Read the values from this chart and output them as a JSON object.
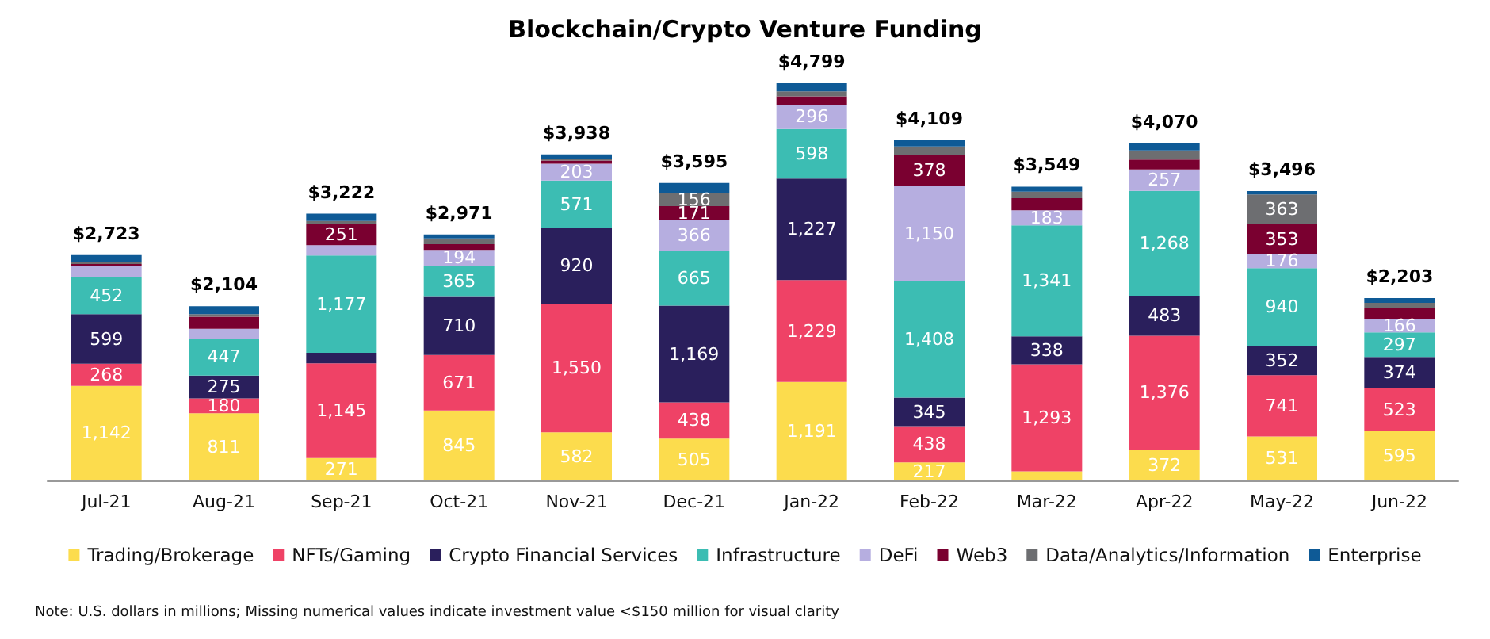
{
  "chart_data": {
    "type": "bar",
    "title": "Blockchain/Crypto Venture Funding",
    "stacked": true,
    "tick_labels": "x",
    "legend": "bottom",
    "categories": [
      "Jul-21",
      "Aug-21",
      "Sep-21",
      "Oct-21",
      "Nov-21",
      "Dec-21",
      "Jan-22",
      "Feb-22",
      "Mar-22",
      "Apr-22",
      "May-22",
      "Jun-22"
    ],
    "series": [
      {
        "name": "Trading/Brokerage",
        "color": "#fcdc4d",
        "values": [
          1142,
          811,
          271,
          845,
          582,
          505,
          1191,
          217,
          110,
          372,
          531,
          595
        ],
        "value_labels": [
          "1,142",
          "811",
          "271",
          "845",
          "582",
          "505",
          "1,191",
          "217",
          null,
          "372",
          "531",
          "595"
        ]
      },
      {
        "name": "NFTs/Gaming",
        "color": "#ef4266",
        "values": [
          268,
          180,
          1145,
          671,
          1550,
          438,
          1229,
          438,
          1293,
          1376,
          741,
          523
        ],
        "value_labels": [
          "268",
          "180",
          "1,145",
          "671",
          "1,550",
          "438",
          "1,229",
          "438",
          "1,293",
          "1,376",
          "741",
          "523"
        ]
      },
      {
        "name": "Crypto Financial Services",
        "color": "#2a1f5c",
        "values": [
          599,
          275,
          125,
          710,
          920,
          1169,
          1227,
          345,
          338,
          483,
          352,
          374
        ],
        "value_labels": [
          "599",
          "275",
          null,
          "710",
          "920",
          "1,169",
          "1,227",
          "345",
          "338",
          "483",
          "352",
          "374"
        ]
      },
      {
        "name": "Infrastructure",
        "color": "#3cbdb3",
        "values": [
          452,
          447,
          1177,
          365,
          571,
          665,
          598,
          1408,
          1341,
          1268,
          940,
          297
        ],
        "value_labels": [
          "452",
          "447",
          "1,177",
          "365",
          "571",
          "665",
          "598",
          "1,408",
          "1,341",
          "1,268",
          "940",
          "297"
        ]
      },
      {
        "name": "DeFi",
        "color": "#b6aee0",
        "values": [
          130,
          120,
          125,
          194,
          203,
          366,
          296,
          1150,
          183,
          257,
          176,
          166
        ],
        "value_labels": [
          null,
          null,
          null,
          "194",
          "203",
          "366",
          "296",
          "1,150",
          "183",
          "257",
          "176",
          "166"
        ]
      },
      {
        "name": "Web3",
        "color": "#7a0030",
        "values": [
          25,
          145,
          251,
          70,
          40,
          171,
          100,
          378,
          145,
          120,
          353,
          130
        ],
        "value_labels": [
          null,
          null,
          "251",
          null,
          null,
          "171",
          null,
          "378",
          null,
          null,
          "353",
          null
        ]
      },
      {
        "name": "Data/Analytics/Information",
        "color": "#6d6e71",
        "values": [
          17,
          30,
          40,
          70,
          22,
          156,
          60,
          100,
          80,
          110,
          363,
          60
        ],
        "value_labels": [
          null,
          null,
          null,
          null,
          null,
          "156",
          null,
          null,
          null,
          null,
          "363",
          null
        ]
      },
      {
        "name": "Enterprise",
        "color": "#0e5a96",
        "values": [
          90,
          96,
          88,
          46,
          50,
          125,
          98,
          73,
          59,
          84,
          40,
          58
        ],
        "value_labels": [
          null,
          null,
          null,
          null,
          null,
          null,
          null,
          null,
          null,
          null,
          null,
          null
        ]
      }
    ],
    "totals": [
      "$2,723",
      "$2,104",
      "$3,222",
      "$2,971",
      "$3,938",
      "$3,595",
      "$4,799",
      "$4,109",
      "$3,549",
      "$4,070",
      "$3,496",
      "$2,203"
    ],
    "annotations": [
      "Note: U.S. dollars in millions; Missing numerical values indicate investment value <$150 million for visual clarity"
    ]
  }
}
